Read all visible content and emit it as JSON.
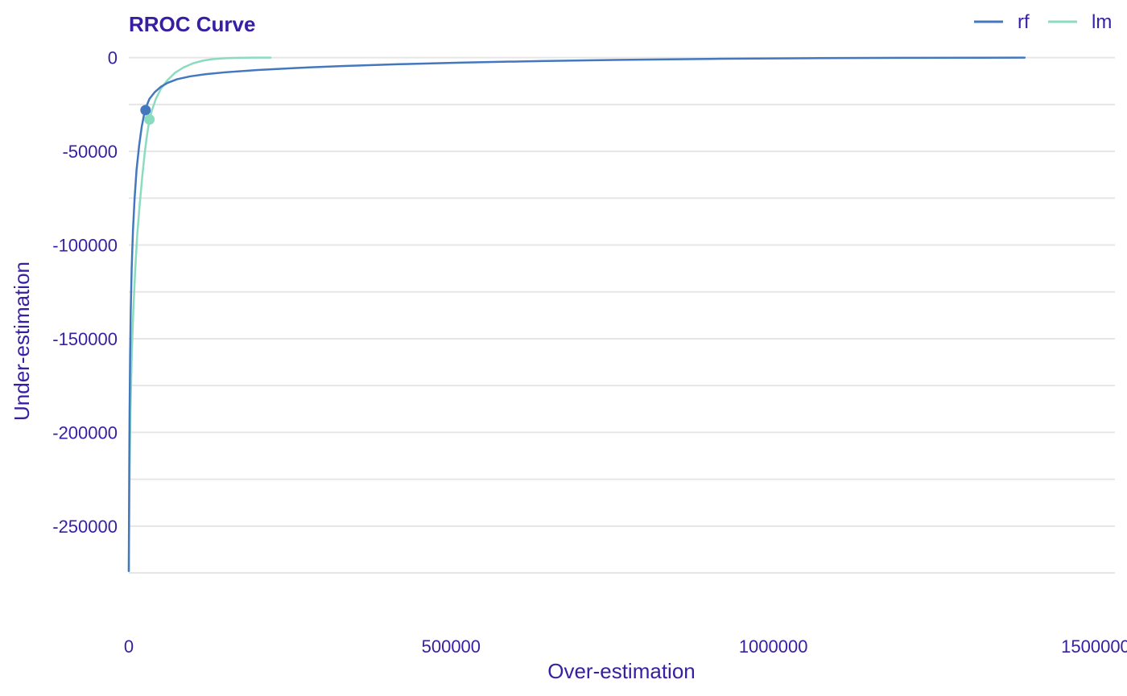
{
  "chart_data": {
    "type": "line",
    "title": "RROC Curve",
    "xlabel": "Over-estimation",
    "ylabel": "Under-estimation",
    "xlim": [
      0,
      1530000
    ],
    "ylim": [
      -287000,
      5000
    ],
    "x_ticks": [
      0,
      500000,
      1000000,
      1500000
    ],
    "x_tick_labels": [
      "0",
      "500000",
      "1000000",
      "1500000"
    ],
    "y_ticks": [
      0,
      -50000,
      -100000,
      -150000,
      -200000,
      -250000
    ],
    "y_tick_labels": [
      "0",
      "-50000",
      "-100000",
      "-150000",
      "-200000",
      "-250000"
    ],
    "y_minor_gridlines": [
      -25000,
      -75000,
      -125000,
      -175000,
      -225000,
      -275000
    ],
    "grid": true,
    "legend_position": "top-right",
    "series": [
      {
        "name": "rf",
        "color": "#4378bf",
        "points": [
          [
            0,
            -274000
          ],
          [
            300,
            -250000
          ],
          [
            700,
            -220000
          ],
          [
            1200,
            -190000
          ],
          [
            2000,
            -160000
          ],
          [
            3000,
            -135000
          ],
          [
            4500,
            -112000
          ],
          [
            6500,
            -92000
          ],
          [
            9000,
            -75000
          ],
          [
            12000,
            -60000
          ],
          [
            16000,
            -47000
          ],
          [
            20000,
            -37000
          ],
          [
            25000,
            -28000
          ],
          [
            32000,
            -22000
          ],
          [
            40000,
            -18500
          ],
          [
            50000,
            -15500
          ],
          [
            60000,
            -13500
          ],
          [
            75000,
            -11500
          ],
          [
            95000,
            -10000
          ],
          [
            120000,
            -8800
          ],
          [
            150000,
            -7800
          ],
          [
            200000,
            -6600
          ],
          [
            260000,
            -5500
          ],
          [
            330000,
            -4500
          ],
          [
            420000,
            -3500
          ],
          [
            520000,
            -2600
          ],
          [
            640000,
            -1800
          ],
          [
            780000,
            -1100
          ],
          [
            920000,
            -600
          ],
          [
            1050000,
            -300
          ],
          [
            1200000,
            -100
          ],
          [
            1320000,
            -20
          ],
          [
            1390000,
            0
          ]
        ],
        "optimal_point": [
          26000,
          -28000
        ]
      },
      {
        "name": "lm",
        "color": "#8bdcbe",
        "points": [
          [
            0,
            -274000
          ],
          [
            1000,
            -230000
          ],
          [
            2500,
            -190000
          ],
          [
            4500,
            -160000
          ],
          [
            7000,
            -135000
          ],
          [
            10000,
            -113000
          ],
          [
            13000,
            -95000
          ],
          [
            17000,
            -78000
          ],
          [
            21000,
            -63000
          ],
          [
            25000,
            -50000
          ],
          [
            28000,
            -42000
          ],
          [
            32000,
            -33000
          ],
          [
            36000,
            -28000
          ],
          [
            42000,
            -22000
          ],
          [
            50000,
            -16500
          ],
          [
            60000,
            -12000
          ],
          [
            72000,
            -8000
          ],
          [
            85000,
            -5200
          ],
          [
            100000,
            -3000
          ],
          [
            115000,
            -1600
          ],
          [
            130000,
            -800
          ],
          [
            150000,
            -300
          ],
          [
            170000,
            -80
          ],
          [
            190000,
            0
          ],
          [
            220000,
            0
          ]
        ],
        "optimal_point": [
          32000,
          -33000
        ]
      }
    ]
  }
}
